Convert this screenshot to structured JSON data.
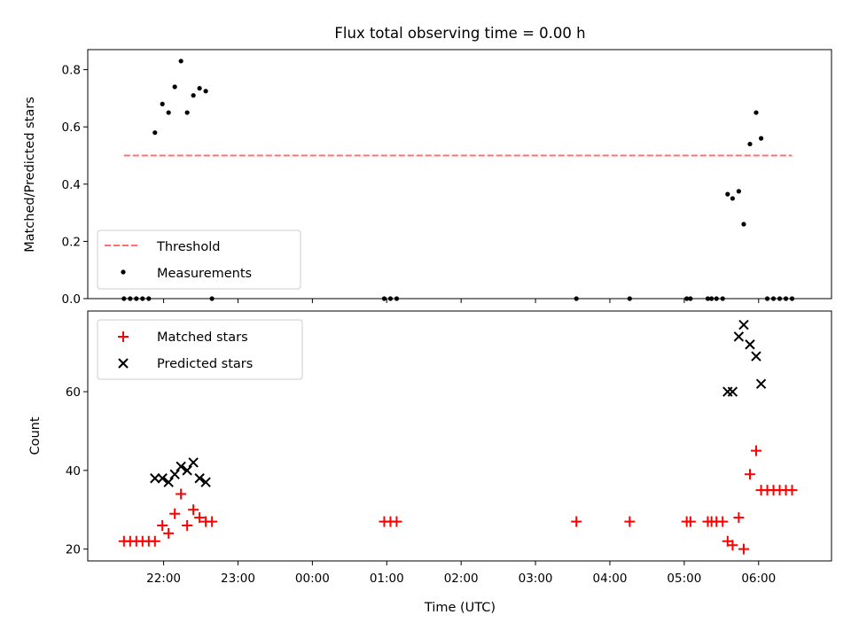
{
  "chart_data": [
    {
      "type": "scatter",
      "title": "Flux total observing time = 0.00 h",
      "xlabel": "",
      "ylabel": "Matched/Predicted stars",
      "xlim_hours": [
        20.98,
        30.98
      ],
      "ylim": [
        0,
        0.87
      ],
      "yticks": [
        0.0,
        0.2,
        0.4,
        0.6,
        0.8
      ],
      "ytick_labels": [
        "0.0",
        "0.2",
        "0.4",
        "0.6",
        "0.8"
      ],
      "threshold": {
        "name": "Threshold",
        "value": 0.5,
        "x_range": [
          "21:28",
          "06:27"
        ],
        "color": "#ff7070",
        "style": "dashed"
      },
      "series": [
        {
          "name": "Measurements",
          "color": "#000000",
          "marker": "dot",
          "points": [
            [
              "21:28",
              0.0
            ],
            [
              "21:33",
              0.0
            ],
            [
              "21:38",
              0.0
            ],
            [
              "21:43",
              0.0
            ],
            [
              "21:48",
              0.0
            ],
            [
              "21:53",
              0.58
            ],
            [
              "21:59",
              0.68
            ],
            [
              "22:04",
              0.65
            ],
            [
              "22:09",
              0.74
            ],
            [
              "22:14",
              0.83
            ],
            [
              "22:19",
              0.65
            ],
            [
              "22:24",
              0.71
            ],
            [
              "22:29",
              0.735
            ],
            [
              "22:34",
              0.725
            ],
            [
              "22:39",
              0.0
            ],
            [
              "00:58",
              0.0
            ],
            [
              "01:03",
              0.0
            ],
            [
              "01:08",
              0.0
            ],
            [
              "03:33",
              0.0
            ],
            [
              "04:16",
              0.0
            ],
            [
              "05:02",
              0.0
            ],
            [
              "05:05",
              0.0
            ],
            [
              "05:19",
              0.0
            ],
            [
              "05:22",
              0.0
            ],
            [
              "05:26",
              0.0
            ],
            [
              "05:31",
              0.0
            ],
            [
              "05:35",
              0.365
            ],
            [
              "05:39",
              0.35
            ],
            [
              "05:44",
              0.375
            ],
            [
              "05:48",
              0.26
            ],
            [
              "05:53",
              0.54
            ],
            [
              "05:58",
              0.65
            ],
            [
              "06:02",
              0.56
            ],
            [
              "06:07",
              0.0
            ],
            [
              "06:12",
              0.0
            ],
            [
              "06:17",
              0.0
            ],
            [
              "06:22",
              0.0
            ],
            [
              "06:27",
              0.0
            ]
          ]
        }
      ],
      "legend": {
        "placement": "lower-left",
        "entries": [
          "Threshold",
          "Measurements"
        ]
      }
    },
    {
      "type": "scatter",
      "title": "",
      "xlabel": "Time (UTC)",
      "ylabel": "Count",
      "xlim_hours": [
        20.98,
        30.98
      ],
      "ylim": [
        17,
        80.5
      ],
      "yticks": [
        20,
        40,
        60
      ],
      "ytick_labels": [
        "20",
        "40",
        "60"
      ],
      "xticks_hours": [
        22,
        23,
        24,
        25,
        26,
        27,
        28,
        29,
        30
      ],
      "xtick_labels": [
        "22:00",
        "23:00",
        "00:00",
        "01:00",
        "02:00",
        "03:00",
        "04:00",
        "05:00",
        "06:00"
      ],
      "series": [
        {
          "name": "Matched stars",
          "color": "#ff0000",
          "marker": "plus",
          "points": [
            [
              "21:28",
              22
            ],
            [
              "21:33",
              22
            ],
            [
              "21:38",
              22
            ],
            [
              "21:43",
              22
            ],
            [
              "21:48",
              22
            ],
            [
              "21:53",
              22
            ],
            [
              "21:59",
              26
            ],
            [
              "22:04",
              24
            ],
            [
              "22:09",
              29
            ],
            [
              "22:14",
              34
            ],
            [
              "22:19",
              26
            ],
            [
              "22:24",
              30
            ],
            [
              "22:29",
              28
            ],
            [
              "22:34",
              27
            ],
            [
              "22:39",
              27
            ],
            [
              "00:58",
              27
            ],
            [
              "01:03",
              27
            ],
            [
              "01:08",
              27
            ],
            [
              "03:33",
              27
            ],
            [
              "04:16",
              27
            ],
            [
              "05:02",
              27
            ],
            [
              "05:05",
              27
            ],
            [
              "05:19",
              27
            ],
            [
              "05:22",
              27
            ],
            [
              "05:26",
              27
            ],
            [
              "05:31",
              27
            ],
            [
              "05:35",
              22
            ],
            [
              "05:39",
              21
            ],
            [
              "05:44",
              28
            ],
            [
              "05:48",
              20
            ],
            [
              "05:53",
              39
            ],
            [
              "05:58",
              45
            ],
            [
              "06:02",
              35
            ],
            [
              "06:07",
              35
            ],
            [
              "06:12",
              35
            ],
            [
              "06:17",
              35
            ],
            [
              "06:22",
              35
            ],
            [
              "06:27",
              35
            ]
          ]
        },
        {
          "name": "Predicted stars",
          "color": "#000000",
          "marker": "x",
          "points": [
            [
              "21:53",
              38
            ],
            [
              "21:59",
              38
            ],
            [
              "22:04",
              37
            ],
            [
              "22:09",
              39
            ],
            [
              "22:14",
              41
            ],
            [
              "22:19",
              40
            ],
            [
              "22:24",
              42
            ],
            [
              "22:29",
              38
            ],
            [
              "22:34",
              37
            ],
            [
              "05:35",
              60
            ],
            [
              "05:39",
              60
            ],
            [
              "05:44",
              74
            ],
            [
              "05:48",
              77
            ],
            [
              "05:53",
              72
            ],
            [
              "05:58",
              69
            ],
            [
              "06:02",
              62
            ]
          ]
        }
      ],
      "legend": {
        "placement": "upper-left",
        "entries": [
          "Matched stars",
          "Predicted stars"
        ]
      }
    }
  ]
}
